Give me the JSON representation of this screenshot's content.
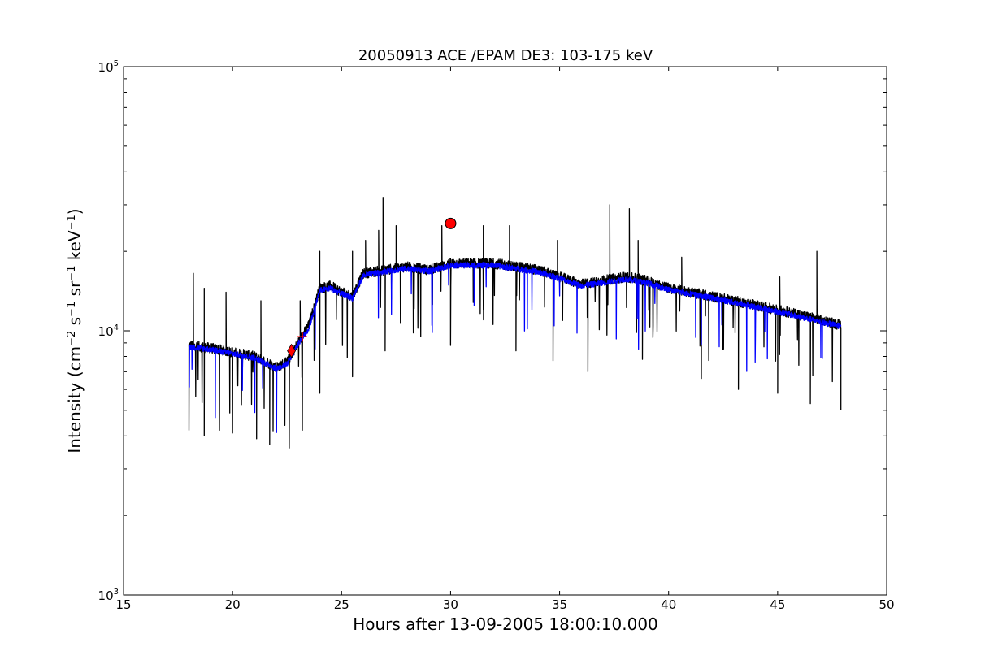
{
  "chart_data": {
    "type": "line",
    "title": "20050913 ACE /EPAM DE3: 103-175 keV",
    "xlabel": "Hours after 13-09-2005 18:00:10.000",
    "ylabel": {
      "prefix": "Intensity (cm",
      "sup1": "−2",
      "mid1": " s",
      "sup2": "−1",
      "mid2": " sr",
      "sup3": "−1",
      "mid3": " keV",
      "sup4": "−1",
      "suffix": ")"
    },
    "xlim": [
      15,
      50
    ],
    "ylim": [
      1000,
      100000
    ],
    "yscale": "log",
    "grid": false,
    "x_ticks": [
      15,
      20,
      25,
      30,
      35,
      40,
      45,
      50
    ],
    "x_tick_labels": [
      "15",
      "20",
      "25",
      "30",
      "35",
      "40",
      "45",
      "50"
    ],
    "y_ticks": [
      {
        "value": 1000,
        "base": "10",
        "exp": "3"
      },
      {
        "value": 10000,
        "base": "10",
        "exp": "4"
      },
      {
        "value": 100000,
        "base": "10",
        "exp": "5"
      }
    ],
    "series": [
      {
        "role": "raw",
        "color": "#000000",
        "x": [
          18.0,
          19.0,
          20.0,
          21.0,
          22.0,
          22.5,
          23.0,
          23.5,
          24.0,
          24.5,
          25.0,
          25.5,
          26.0,
          27.0,
          28.0,
          29.0,
          30.0,
          31.0,
          32.0,
          33.0,
          34.0,
          35.0,
          36.0,
          37.0,
          38.0,
          39.0,
          40.0,
          41.0,
          42.0,
          43.0,
          44.0,
          45.0,
          46.0,
          47.0,
          47.9
        ],
        "y": [
          8800,
          8600,
          8300,
          8000,
          7300,
          7600,
          9000,
          10500,
          14500,
          14800,
          14000,
          13500,
          16500,
          17000,
          17500,
          17000,
          18000,
          18000,
          18000,
          17500,
          17000,
          16000,
          15000,
          15500,
          16000,
          15500,
          14500,
          14000,
          13500,
          13000,
          12500,
          12000,
          11500,
          11000,
          10500
        ],
        "spikes": [
          {
            "x": 18.2,
            "y": 16500
          },
          {
            "x": 18.7,
            "y": 14500
          },
          {
            "x": 19.7,
            "y": 14000
          },
          {
            "x": 21.3,
            "y": 13000
          },
          {
            "x": 23.1,
            "y": 13000
          },
          {
            "x": 24.0,
            "y": 20000
          },
          {
            "x": 25.5,
            "y": 20000
          },
          {
            "x": 26.1,
            "y": 22000
          },
          {
            "x": 26.7,
            "y": 24000
          },
          {
            "x": 26.9,
            "y": 32000
          },
          {
            "x": 27.5,
            "y": 25000
          },
          {
            "x": 29.6,
            "y": 25000
          },
          {
            "x": 31.5,
            "y": 25000
          },
          {
            "x": 32.7,
            "y": 25000
          },
          {
            "x": 34.9,
            "y": 22000
          },
          {
            "x": 37.3,
            "y": 30000
          },
          {
            "x": 38.2,
            "y": 29000
          },
          {
            "x": 38.6,
            "y": 22000
          },
          {
            "x": 40.6,
            "y": 19000
          },
          {
            "x": 45.1,
            "y": 16000
          },
          {
            "x": 46.8,
            "y": 20000
          }
        ],
        "dips": [
          {
            "x": 18.0,
            "y": 4200
          },
          {
            "x": 18.7,
            "y": 4000
          },
          {
            "x": 19.4,
            "y": 4200
          },
          {
            "x": 20.0,
            "y": 4100
          },
          {
            "x": 21.1,
            "y": 3900
          },
          {
            "x": 21.7,
            "y": 3700
          },
          {
            "x": 22.6,
            "y": 3600
          },
          {
            "x": 23.2,
            "y": 4200
          },
          {
            "x": 24.0,
            "y": 5800
          },
          {
            "x": 25.5,
            "y": 6700
          },
          {
            "x": 27.0,
            "y": 8400
          },
          {
            "x": 30.0,
            "y": 8800
          },
          {
            "x": 33.0,
            "y": 8400
          },
          {
            "x": 34.7,
            "y": 7700
          },
          {
            "x": 36.3,
            "y": 7000
          },
          {
            "x": 38.8,
            "y": 7800
          },
          {
            "x": 41.5,
            "y": 6600
          },
          {
            "x": 43.2,
            "y": 6000
          },
          {
            "x": 45.0,
            "y": 5800
          },
          {
            "x": 46.5,
            "y": 5300
          },
          {
            "x": 47.9,
            "y": 5000
          }
        ]
      },
      {
        "role": "smoothed",
        "color": "#0000ff",
        "x": [
          18.0,
          19.0,
          20.0,
          21.0,
          22.0,
          22.5,
          23.0,
          23.5,
          24.0,
          24.5,
          25.0,
          25.5,
          26.0,
          27.0,
          28.0,
          29.0,
          30.0,
          31.0,
          32.0,
          33.0,
          34.0,
          35.0,
          36.0,
          37.0,
          38.0,
          39.0,
          40.0,
          41.0,
          42.0,
          43.0,
          44.0,
          45.0,
          46.0,
          47.0,
          47.9
        ],
        "y": [
          8700,
          8500,
          8200,
          7900,
          7200,
          7500,
          8900,
          10200,
          14200,
          14500,
          13800,
          13300,
          16200,
          16800,
          17200,
          16800,
          17700,
          17700,
          17700,
          17200,
          16700,
          15800,
          14800,
          15200,
          15700,
          15200,
          14300,
          13800,
          13300,
          12800,
          12300,
          11800,
          11300,
          10800,
          10400
        ]
      }
    ],
    "markers": [
      {
        "shape": "diamond",
        "x": 22.7,
        "y": 8400,
        "color": "#ff0000"
      },
      {
        "shape": "plus",
        "x": 23.2,
        "y": 9500,
        "color": "#ff0000"
      },
      {
        "shape": "circle",
        "x": 30.0,
        "y": 25500,
        "color": "#ff0000"
      }
    ]
  }
}
